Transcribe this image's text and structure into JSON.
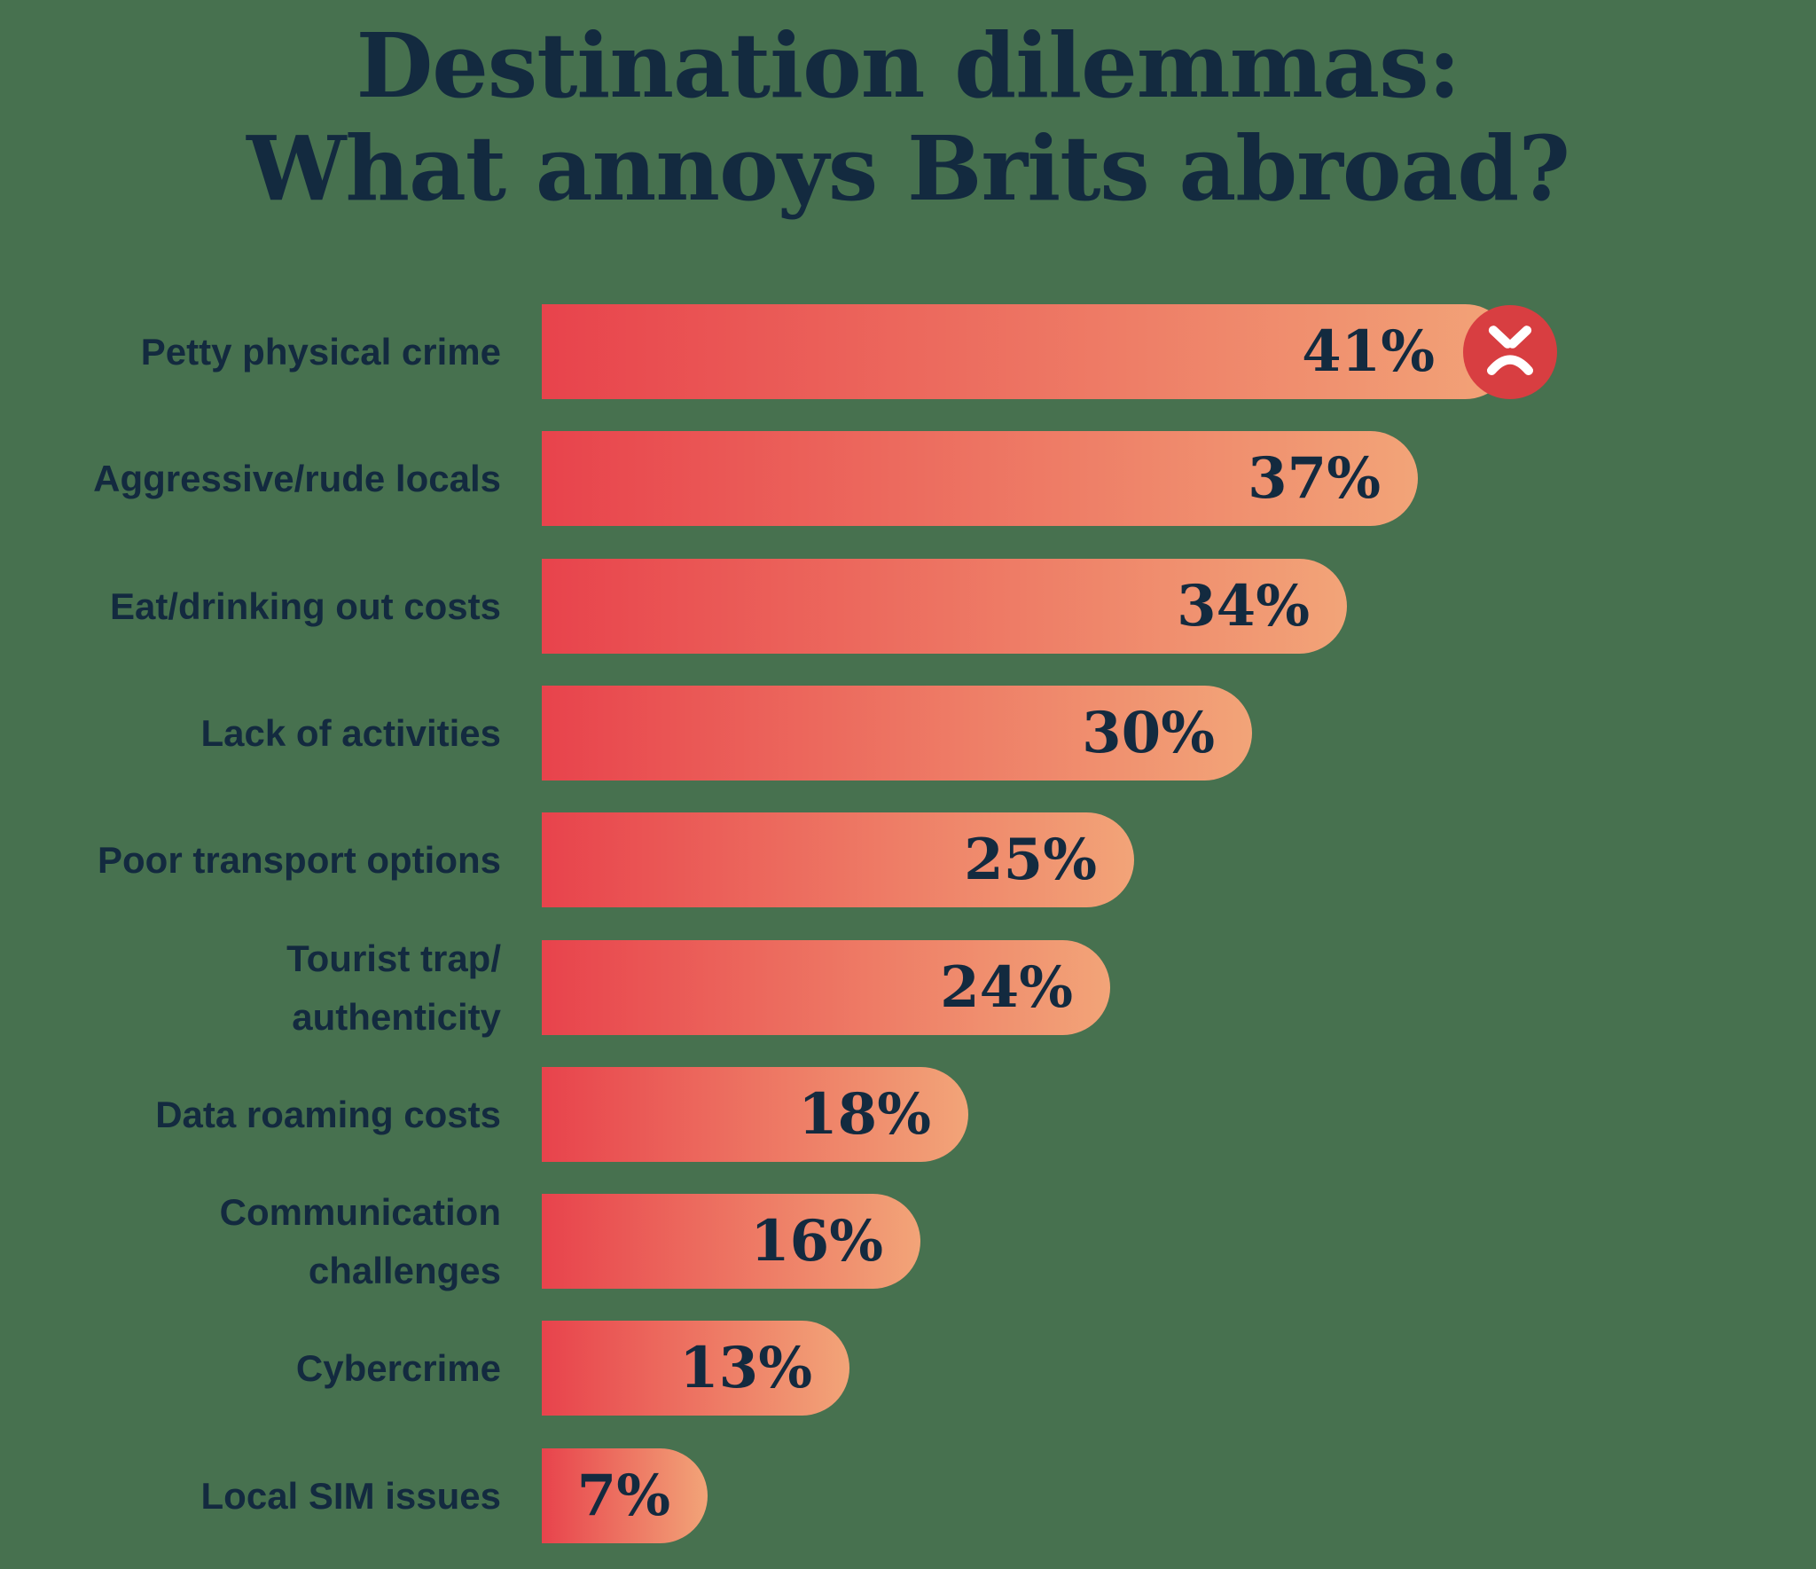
{
  "title": "Destination dilemmas:\nWhat annoys Brits abroad?",
  "colors": {
    "background": "#47714F",
    "text_navy": "#132A3F",
    "bar_gradient_start": "#E8434C",
    "bar_gradient_end": "#F2A478",
    "angry_face_red": "#D83E41",
    "angry_face_features": "#FFFFFF"
  },
  "icons": {
    "top_bar_icon": "angry-face-icon"
  },
  "chart_data": {
    "type": "bar",
    "orientation": "horizontal",
    "title": "Destination dilemmas: What annoys Brits abroad?",
    "xlabel": "",
    "ylabel": "",
    "unit": "%",
    "xlim": [
      0,
      43
    ],
    "grid": false,
    "legend": "none",
    "categories": [
      "Petty physical crime",
      "Aggressive/rude locals",
      "Eat/drinking out costs",
      "Lack of activities",
      "Poor transport options",
      "Tourist trap/\nauthenticity",
      "Data roaming costs",
      "Communication\nchallenges",
      "Cybercrime",
      "Local SIM issues"
    ],
    "values": [
      41,
      37,
      34,
      30,
      25,
      24,
      18,
      16,
      13,
      7
    ],
    "value_labels": [
      "41%",
      "37%",
      "34%",
      "30%",
      "25%",
      "24%",
      "18%",
      "16%",
      "13%",
      "7%"
    ],
    "annotations": [
      "angry face badge at end of top bar (41%)"
    ]
  }
}
